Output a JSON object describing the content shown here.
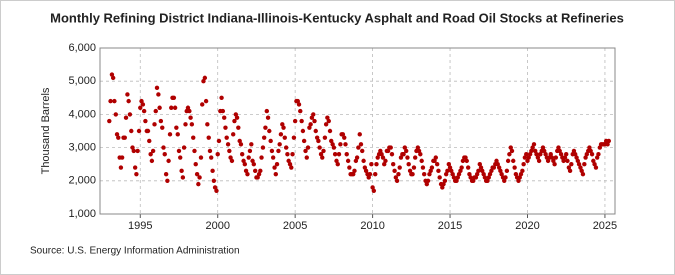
{
  "chart_data": {
    "type": "scatter",
    "title": "Monthly Refining District Indiana-Illinois-Kentucky Asphalt and Road Oil Stocks at Refineries",
    "ylabel": "Thousand Barrels",
    "source": "Source: U.S. Energy Information Administration",
    "color": "#b00000",
    "grid": true,
    "xlim": [
      1992.4,
      2025.65
    ],
    "xticks": [
      1995,
      2000,
      2005,
      2010,
      2015,
      2020,
      2025
    ],
    "ylim": [
      1000,
      6000
    ],
    "yticks": [
      {
        "value": 1000,
        "label": "1,000"
      },
      {
        "value": 2000,
        "label": "2,000"
      },
      {
        "value": 3000,
        "label": "3,000"
      },
      {
        "value": 4000,
        "label": "4,000"
      },
      {
        "value": 5000,
        "label": "5,000"
      },
      {
        "value": 6000,
        "label": "6,000"
      }
    ],
    "x": [
      1993.0,
      1993.08,
      1993.17,
      1993.25,
      1993.33,
      1993.42,
      1993.5,
      1993.58,
      1993.67,
      1993.75,
      1993.83,
      1993.92,
      1994.0,
      1994.08,
      1994.17,
      1994.25,
      1994.33,
      1994.42,
      1994.5,
      1994.58,
      1994.67,
      1994.75,
      1994.83,
      1994.92,
      1995.0,
      1995.08,
      1995.17,
      1995.25,
      1995.33,
      1995.42,
      1995.5,
      1995.58,
      1995.67,
      1995.75,
      1995.83,
      1995.92,
      1996.0,
      1996.08,
      1996.17,
      1996.25,
      1996.33,
      1996.42,
      1996.5,
      1996.58,
      1996.67,
      1996.75,
      1996.83,
      1996.92,
      1997.0,
      1997.08,
      1997.17,
      1997.25,
      1997.33,
      1997.42,
      1997.5,
      1997.58,
      1997.67,
      1997.75,
      1997.83,
      1997.92,
      1998.0,
      1998.08,
      1998.17,
      1998.25,
      1998.33,
      1998.42,
      1998.5,
      1998.58,
      1998.67,
      1998.75,
      1998.83,
      1998.92,
      1999.0,
      1999.08,
      1999.17,
      1999.25,
      1999.33,
      1999.42,
      1999.5,
      1999.58,
      1999.67,
      1999.75,
      1999.83,
      1999.92,
      2000.0,
      2000.08,
      2000.17,
      2000.25,
      2000.33,
      2000.42,
      2000.5,
      2000.58,
      2000.67,
      2000.75,
      2000.83,
      2000.92,
      2001.0,
      2001.08,
      2001.17,
      2001.25,
      2001.33,
      2001.42,
      2001.5,
      2001.58,
      2001.67,
      2001.75,
      2001.83,
      2001.92,
      2002.0,
      2002.08,
      2002.17,
      2002.25,
      2002.33,
      2002.42,
      2002.5,
      2002.58,
      2002.67,
      2002.75,
      2002.83,
      2002.92,
      2003.0,
      2003.08,
      2003.17,
      2003.25,
      2003.33,
      2003.42,
      2003.5,
      2003.58,
      2003.67,
      2003.75,
      2003.83,
      2003.92,
      2004.0,
      2004.08,
      2004.17,
      2004.25,
      2004.33,
      2004.42,
      2004.5,
      2004.58,
      2004.67,
      2004.75,
      2004.83,
      2004.92,
      2005.0,
      2005.08,
      2005.17,
      2005.25,
      2005.33,
      2005.42,
      2005.5,
      2005.58,
      2005.67,
      2005.75,
      2005.83,
      2005.92,
      2006.0,
      2006.08,
      2006.17,
      2006.25,
      2006.33,
      2006.42,
      2006.5,
      2006.58,
      2006.67,
      2006.75,
      2006.83,
      2006.92,
      2007.0,
      2007.08,
      2007.17,
      2007.25,
      2007.33,
      2007.42,
      2007.5,
      2007.58,
      2007.67,
      2007.75,
      2007.83,
      2007.92,
      2008.0,
      2008.08,
      2008.17,
      2008.25,
      2008.33,
      2008.42,
      2008.5,
      2008.58,
      2008.67,
      2008.75,
      2008.83,
      2008.92,
      2009.0,
      2009.08,
      2009.17,
      2009.25,
      2009.33,
      2009.42,
      2009.5,
      2009.58,
      2009.67,
      2009.75,
      2009.83,
      2009.92,
      2010.0,
      2010.08,
      2010.17,
      2010.25,
      2010.33,
      2010.42,
      2010.5,
      2010.58,
      2010.67,
      2010.75,
      2010.83,
      2010.92,
      2011.0,
      2011.08,
      2011.17,
      2011.25,
      2011.33,
      2011.42,
      2011.5,
      2011.58,
      2011.67,
      2011.75,
      2011.83,
      2011.92,
      2012.0,
      2012.08,
      2012.17,
      2012.25,
      2012.33,
      2012.42,
      2012.5,
      2012.58,
      2012.67,
      2012.75,
      2012.83,
      2012.92,
      2013.0,
      2013.08,
      2013.17,
      2013.25,
      2013.33,
      2013.42,
      2013.5,
      2013.58,
      2013.67,
      2013.75,
      2013.83,
      2013.92,
      2014.0,
      2014.08,
      2014.17,
      2014.25,
      2014.33,
      2014.42,
      2014.5,
      2014.58,
      2014.67,
      2014.75,
      2014.83,
      2014.92,
      2015.0,
      2015.08,
      2015.17,
      2015.25,
      2015.33,
      2015.42,
      2015.5,
      2015.58,
      2015.67,
      2015.75,
      2015.83,
      2015.92,
      2016.0,
      2016.08,
      2016.17,
      2016.25,
      2016.33,
      2016.42,
      2016.5,
      2016.58,
      2016.67,
      2016.75,
      2016.83,
      2016.92,
      2017.0,
      2017.08,
      2017.17,
      2017.25,
      2017.33,
      2017.42,
      2017.5,
      2017.58,
      2017.67,
      2017.75,
      2017.83,
      2017.92,
      2018.0,
      2018.08,
      2018.17,
      2018.25,
      2018.33,
      2018.42,
      2018.5,
      2018.58,
      2018.67,
      2018.75,
      2018.83,
      2018.92,
      2019.0,
      2019.08,
      2019.17,
      2019.25,
      2019.33,
      2019.42,
      2019.5,
      2019.58,
      2019.67,
      2019.75,
      2019.83,
      2019.92,
      2020.0,
      2020.08,
      2020.17,
      2020.25,
      2020.33,
      2020.42,
      2020.5,
      2020.58,
      2020.67,
      2020.75,
      2020.83,
      2020.92,
      2021.0,
      2021.08,
      2021.17,
      2021.25,
      2021.33,
      2021.42,
      2021.5,
      2021.58,
      2021.67,
      2021.75,
      2021.83,
      2021.92,
      2022.0,
      2022.08,
      2022.17,
      2022.25,
      2022.33,
      2022.42,
      2022.5,
      2022.58,
      2022.67,
      2022.75,
      2022.83,
      2022.92,
      2023.0,
      2023.08,
      2023.17,
      2023.25,
      2023.33,
      2023.42,
      2023.5,
      2023.58,
      2023.67,
      2023.75,
      2023.83,
      2023.92,
      2024.0,
      2024.08,
      2024.17,
      2024.25,
      2024.33,
      2024.42,
      2024.5,
      2024.58,
      2024.67,
      2024.75,
      2024.83,
      2024.92,
      2025.0,
      2025.08,
      2025.17,
      2025.25
    ],
    "values": [
      3800,
      4400,
      5200,
      5100,
      4400,
      4000,
      3400,
      3300,
      2700,
      2400,
      2700,
      3300,
      3300,
      3900,
      4600,
      4400,
      4000,
      3500,
      3000,
      2900,
      2400,
      2200,
      2900,
      3500,
      4200,
      4400,
      4300,
      4100,
      3800,
      3500,
      3500,
      3200,
      2800,
      2600,
      2900,
      3700,
      4100,
      4800,
      4600,
      4200,
      3800,
      3600,
      3000,
      2800,
      2200,
      2000,
      2600,
      3400,
      4200,
      4500,
      4500,
      4200,
      3600,
      3400,
      2900,
      2700,
      2300,
      2100,
      3000,
      3700,
      4100,
      4200,
      4100,
      3900,
      3700,
      3300,
      2900,
      2500,
      2200,
      1900,
      2100,
      2700,
      4300,
      5000,
      5100,
      4400,
      3700,
      3300,
      2900,
      2700,
      2300,
      2000,
      1800,
      1700,
      2800,
      3200,
      4100,
      4500,
      4100,
      3900,
      3600,
      3300,
      3100,
      2900,
      2700,
      2600,
      3400,
      3800,
      4000,
      3900,
      3600,
      3200,
      3100,
      2800,
      2600,
      2500,
      2300,
      2200,
      2700,
      2900,
      3100,
      2600,
      2500,
      2300,
      2100,
      2100,
      2200,
      2300,
      2700,
      3000,
      3300,
      3600,
      4100,
      3900,
      3500,
      3200,
      2900,
      2700,
      2400,
      2200,
      2500,
      2900,
      3100,
      3400,
      3700,
      3600,
      3300,
      3000,
      2800,
      2600,
      2500,
      2400,
      2800,
      3300,
      3800,
      4400,
      4400,
      4300,
      4100,
      3800,
      3500,
      3200,
      2900,
      2700,
      3000,
      3600,
      3700,
      3900,
      4000,
      3800,
      3500,
      3300,
      3200,
      3000,
      2800,
      2700,
      2900,
      3300,
      3700,
      3900,
      3800,
      3500,
      3200,
      3100,
      3000,
      2800,
      2600,
      2500,
      2800,
      3100,
      3400,
      3400,
      3300,
      3100,
      2800,
      2600,
      2400,
      2200,
      2200,
      2200,
      2300,
      2600,
      2700,
      3000,
      3400,
      3100,
      2900,
      2600,
      2400,
      2300,
      2200,
      2100,
      2200,
      2500,
      1800,
      1700,
      2200,
      2500,
      2700,
      2800,
      2900,
      2800,
      2700,
      2500,
      2600,
      2900,
      2900,
      3000,
      3000,
      2800,
      2500,
      2300,
      2100,
      2000,
      2200,
      2400,
      2700,
      2800,
      2800,
      3000,
      2900,
      2700,
      2500,
      2300,
      2200,
      2200,
      2400,
      2700,
      2900,
      3000,
      2900,
      2800,
      2600,
      2400,
      2200,
      2000,
      1900,
      2000,
      2200,
      2300,
      2400,
      2600,
      2600,
      2700,
      2500,
      2300,
      2100,
      1900,
      1800,
      1900,
      2000,
      2200,
      2300,
      2500,
      2400,
      2300,
      2200,
      2100,
      2000,
      2000,
      2100,
      2200,
      2300,
      2400,
      2600,
      2700,
      2700,
      2600,
      2400,
      2200,
      2100,
      2000,
      2000,
      2100,
      2100,
      2200,
      2300,
      2500,
      2400,
      2300,
      2200,
      2100,
      2000,
      2000,
      2100,
      2200,
      2300,
      2400,
      2400,
      2500,
      2600,
      2500,
      2400,
      2300,
      2200,
      2100,
      2000,
      2100,
      2300,
      2600,
      2800,
      3000,
      2900,
      2600,
      2400,
      2200,
      2100,
      2000,
      2100,
      2200,
      2300,
      2500,
      2700,
      2800,
      2600,
      2700,
      2800,
      2900,
      3000,
      3100,
      2900,
      2800,
      2700,
      2600,
      2800,
      2900,
      3000,
      2900,
      2800,
      2700,
      2600,
      2700,
      2800,
      2700,
      2600,
      2500,
      2700,
      2900,
      3000,
      2900,
      2800,
      2700,
      2600,
      2700,
      2800,
      2600,
      2400,
      2300,
      2500,
      2800,
      2900,
      2800,
      2700,
      2600,
      2500,
      2400,
      2300,
      2200,
      2500,
      2700,
      2800,
      2900,
      3000,
      2900,
      2800,
      2600,
      2500,
      2400,
      2700,
      2800,
      3000,
      3100,
      3100,
      3100,
      3100,
      3200,
      3100,
      3200
    ]
  }
}
